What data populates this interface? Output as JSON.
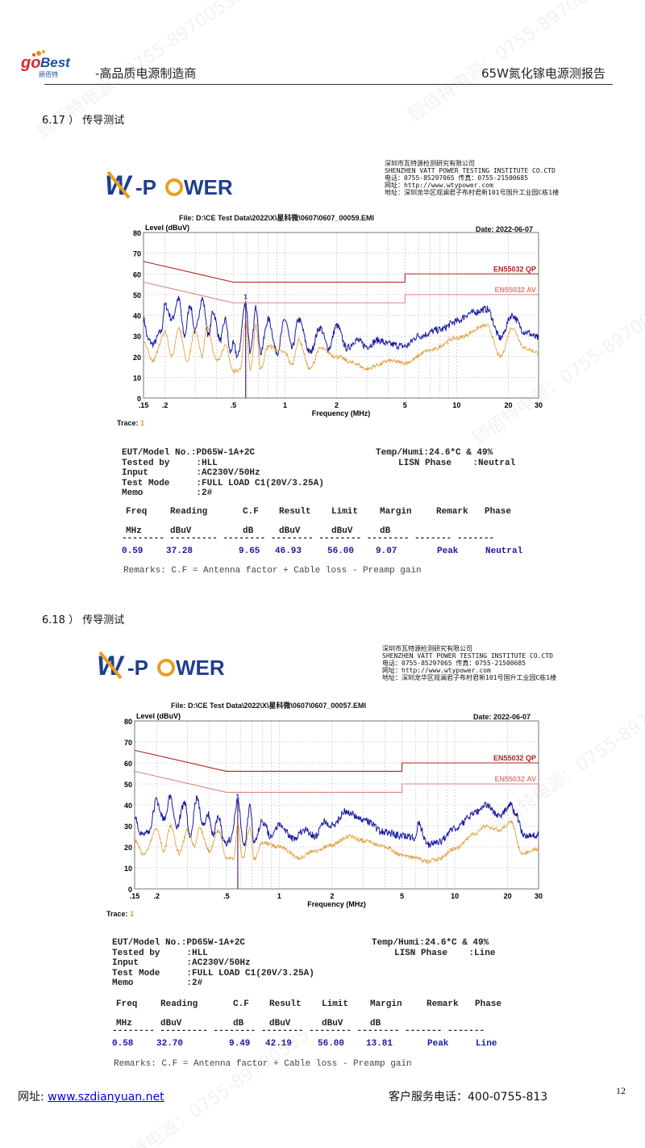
{
  "header": {
    "logo_text": "goBest 顾佰特",
    "tagline": "-高品质电源制造商",
    "report_title": "65W氮化镓电源测报告"
  },
  "footer": {
    "site_label": "网址:",
    "site_url": "www.szdianyuan.net",
    "phone": "客户服务电话：400-0755-813",
    "page_number": "12"
  },
  "watermark": "顾佰特电源：0755-89700535",
  "lab": {
    "logo_text": "W-POWER",
    "lines": [
      "深圳市瓦特源检测研究有限公司",
      "SHENZHEN VATT POWER TESTING INSTITUTE CO.CTD",
      "电话：0755-85297065   传真：0755-21500685",
      "网址：http://www.wtypower.com",
      "地址：深圳龙华区观澜君子布村君新101号国升工业园C栋1楼"
    ]
  },
  "colors": {
    "peak": "#1a1aa0",
    "average": "#e09a30",
    "qp_limit": "#b02020",
    "av_limit": "#e08080",
    "link": "#0000ee"
  },
  "sections": [
    {
      "heading": "6.17 ）  传导测试",
      "file": "File: D:\\CE Test Data\\2022\\X\\星科微\\0607\\0607_00059.EMI",
      "date": "Date: 2022-06-07",
      "trace_label": "Trace:",
      "trace_value": "1",
      "info": {
        "eut": "EUT/Model No.:PD65W-1A+2C",
        "tested": "Tested by     :HLL",
        "input": "Input         :AC230V/50Hz",
        "mode": "Test Mode     :FULL LOAD C1(20V/3.25A)",
        "memo": "Memo          :2#",
        "temp": "Temp/Humi:24.6*C & 49%",
        "lisn": "LISN Phase    :Neutral"
      },
      "table": {
        "headers": [
          "Freq",
          "Reading",
          "C.F",
          "Result",
          "Limit",
          "Margin",
          "Remark",
          "Phase"
        ],
        "units": [
          "MHz",
          "dBuV",
          "dB",
          "dBuV",
          "dBuV",
          "dB",
          "",
          ""
        ],
        "row": [
          "0.59",
          "37.28",
          "9.65",
          "46.93",
          "56.00",
          "9.07",
          "Peak",
          "Neutral"
        ]
      },
      "remarks": "Remarks: C.F  = Antenna factor + Cable loss - Preamp gain"
    },
    {
      "heading": "6.18 ）  传导测试",
      "file": "File: D:\\CE Test Data\\2022\\X\\星科微\\0607\\0607_00057.EMI",
      "date": "Date: 2022-06-07",
      "trace_label": "Trace:",
      "trace_value": "1",
      "info": {
        "eut": "EUT/Model No.:PD65W-1A+2C",
        "tested": "Tested by     :HLL",
        "input": "Input         :AC230V/50Hz",
        "mode": "Test Mode     :FULL LOAD C1(20V/3.25A)",
        "memo": "Memo          :2#",
        "temp": "Temp/Humi:24.6*C & 49%",
        "lisn": "LISN Phase    :Line"
      },
      "table": {
        "headers": [
          "Freq",
          "Reading",
          "C.F",
          "Result",
          "Limit",
          "Margin",
          "Remark",
          "Phase"
        ],
        "units": [
          "MHz",
          "dBuV",
          "dB",
          "dBuV",
          "dBuV",
          "dB",
          "",
          ""
        ],
        "row": [
          "0.58",
          "32.70",
          "9.49",
          "42.19",
          "56.00",
          "13.81",
          "Peak",
          "Line"
        ]
      },
      "remarks": "Remarks: C.F  = Antenna factor + Cable loss - Preamp gain"
    }
  ],
  "chart_data": [
    {
      "type": "line",
      "ylabel": "Level (dBuV)",
      "xlabel": "Frequency (MHz)",
      "xscale": "log",
      "xlim": [
        0.15,
        30
      ],
      "ylim": [
        0,
        80
      ],
      "grid": true,
      "xticks": [
        ".15",
        ".2",
        ".5",
        "1",
        "2",
        "5",
        "10",
        "20",
        "30"
      ],
      "xtick_values": [
        0.15,
        0.2,
        0.5,
        1,
        2,
        5,
        10,
        20,
        30
      ],
      "yticks": [
        "0",
        "10",
        "20",
        "30",
        "40",
        "50",
        "60",
        "70",
        "80"
      ],
      "limits": [
        {
          "name": "EN55032 QP",
          "x": [
            0.15,
            0.5,
            0.5,
            5,
            5,
            30
          ],
          "y": [
            66,
            56,
            56,
            56,
            60,
            60
          ]
        },
        {
          "name": "EN55032 AV",
          "x": [
            0.15,
            0.5,
            0.5,
            5,
            5,
            30
          ],
          "y": [
            56,
            46,
            46,
            46,
            50,
            50
          ]
        }
      ],
      "marker": {
        "label": "1",
        "x": 0.59,
        "y": 46.93
      },
      "series": [
        {
          "x": [
            0.15,
            0.16,
            0.17,
            0.19,
            0.2,
            0.22,
            0.24,
            0.26,
            0.28,
            0.3,
            0.33,
            0.36,
            0.38,
            0.42,
            0.45,
            0.48,
            0.5,
            0.53,
            0.59,
            0.63,
            0.68,
            0.72,
            0.8,
            0.9,
            1,
            1.1,
            1.2,
            1.4,
            1.6,
            1.8,
            2,
            2.3,
            2.6,
            3,
            3.5,
            4,
            5,
            6,
            8,
            10,
            12,
            15,
            18,
            21,
            25,
            30
          ],
          "y": [
            38,
            28,
            26,
            32,
            45,
            38,
            48,
            30,
            45,
            32,
            48,
            30,
            42,
            28,
            38,
            22,
            26,
            20,
            46,
            22,
            44,
            22,
            38,
            22,
            38,
            24,
            38,
            22,
            34,
            24,
            35,
            24,
            28,
            25,
            28,
            26,
            25,
            30,
            33,
            37,
            41,
            43,
            29,
            40,
            32,
            29
          ]
        },
        {
          "x": [
            0.15,
            0.17,
            0.2,
            0.22,
            0.24,
            0.27,
            0.3,
            0.33,
            0.35,
            0.4,
            0.45,
            0.5,
            0.55,
            0.59,
            0.63,
            0.68,
            0.72,
            0.8,
            1,
            1.1,
            1.2,
            1.4,
            1.6,
            2,
            2.5,
            3,
            3.5,
            4,
            5,
            7,
            10,
            15,
            18,
            21,
            25,
            30
          ],
          "y": [
            27,
            18,
            32,
            20,
            34,
            18,
            33,
            20,
            35,
            18,
            25,
            13,
            14,
            37,
            14,
            35,
            14,
            25,
            22,
            16,
            28,
            14,
            24,
            20,
            17,
            14,
            16,
            18,
            17,
            23,
            29,
            35,
            20,
            34,
            24,
            22
          ]
        }
      ]
    },
    {
      "type": "line",
      "ylabel": "Level (dBuV)",
      "xlabel": "Frequency (MHz)",
      "xscale": "log",
      "xlim": [
        0.15,
        30
      ],
      "ylim": [
        0,
        80
      ],
      "grid": true,
      "xticks": [
        ".15",
        ".2",
        ".5",
        "1",
        "2",
        "5",
        "10",
        "20",
        "30"
      ],
      "xtick_values": [
        0.15,
        0.2,
        0.5,
        1,
        2,
        5,
        10,
        20,
        30
      ],
      "yticks": [
        "0",
        "10",
        "20",
        "30",
        "40",
        "50",
        "60",
        "70",
        "80"
      ],
      "limits": [
        {
          "name": "EN55032 QP",
          "x": [
            0.15,
            0.5,
            0.5,
            5,
            5,
            30
          ],
          "y": [
            66,
            56,
            56,
            56,
            60,
            60
          ]
        },
        {
          "name": "EN55032 AV",
          "x": [
            0.15,
            0.5,
            0.5,
            5,
            5,
            30
          ],
          "y": [
            56,
            46,
            46,
            46,
            50,
            50
          ]
        }
      ],
      "marker": {
        "label": "1",
        "x": 0.58,
        "y": 42.19
      },
      "series": [
        {
          "x": [
            0.15,
            0.16,
            0.18,
            0.2,
            0.22,
            0.24,
            0.26,
            0.29,
            0.31,
            0.34,
            0.37,
            0.39,
            0.42,
            0.45,
            0.48,
            0.5,
            0.53,
            0.58,
            0.63,
            0.68,
            0.72,
            0.8,
            0.9,
            1,
            1.2,
            1.4,
            1.6,
            1.8,
            2,
            2.4,
            3,
            4,
            5,
            6,
            6.2,
            7,
            8,
            10,
            13,
            15,
            18,
            21,
            22,
            25,
            30
          ],
          "y": [
            36,
            27,
            27,
            42,
            33,
            44,
            30,
            41,
            25,
            43,
            30,
            36,
            26,
            35,
            24,
            22,
            24,
            42,
            20,
            39,
            22,
            32,
            25,
            31,
            24,
            28,
            25,
            32,
            30,
            37,
            33,
            27,
            25,
            24,
            31,
            21,
            22,
            29,
            36,
            40,
            35,
            40,
            36,
            25,
            26
          ]
        },
        {
          "x": [
            0.15,
            0.17,
            0.2,
            0.22,
            0.24,
            0.27,
            0.3,
            0.33,
            0.35,
            0.4,
            0.45,
            0.5,
            0.55,
            0.58,
            0.62,
            0.68,
            0.72,
            0.8,
            1,
            1.3,
            1.6,
            2,
            2.5,
            3,
            4,
            5,
            6,
            7,
            8,
            10,
            13,
            15,
            18,
            21,
            24,
            30
          ],
          "y": [
            23,
            16,
            29,
            18,
            30,
            17,
            28,
            20,
            29,
            18,
            28,
            15,
            14,
            30,
            14,
            29,
            14,
            22,
            20,
            15,
            18,
            21,
            25,
            23,
            20,
            16,
            15,
            13,
            14,
            19,
            26,
            30,
            28,
            32,
            17,
            19
          ]
        }
      ]
    }
  ]
}
